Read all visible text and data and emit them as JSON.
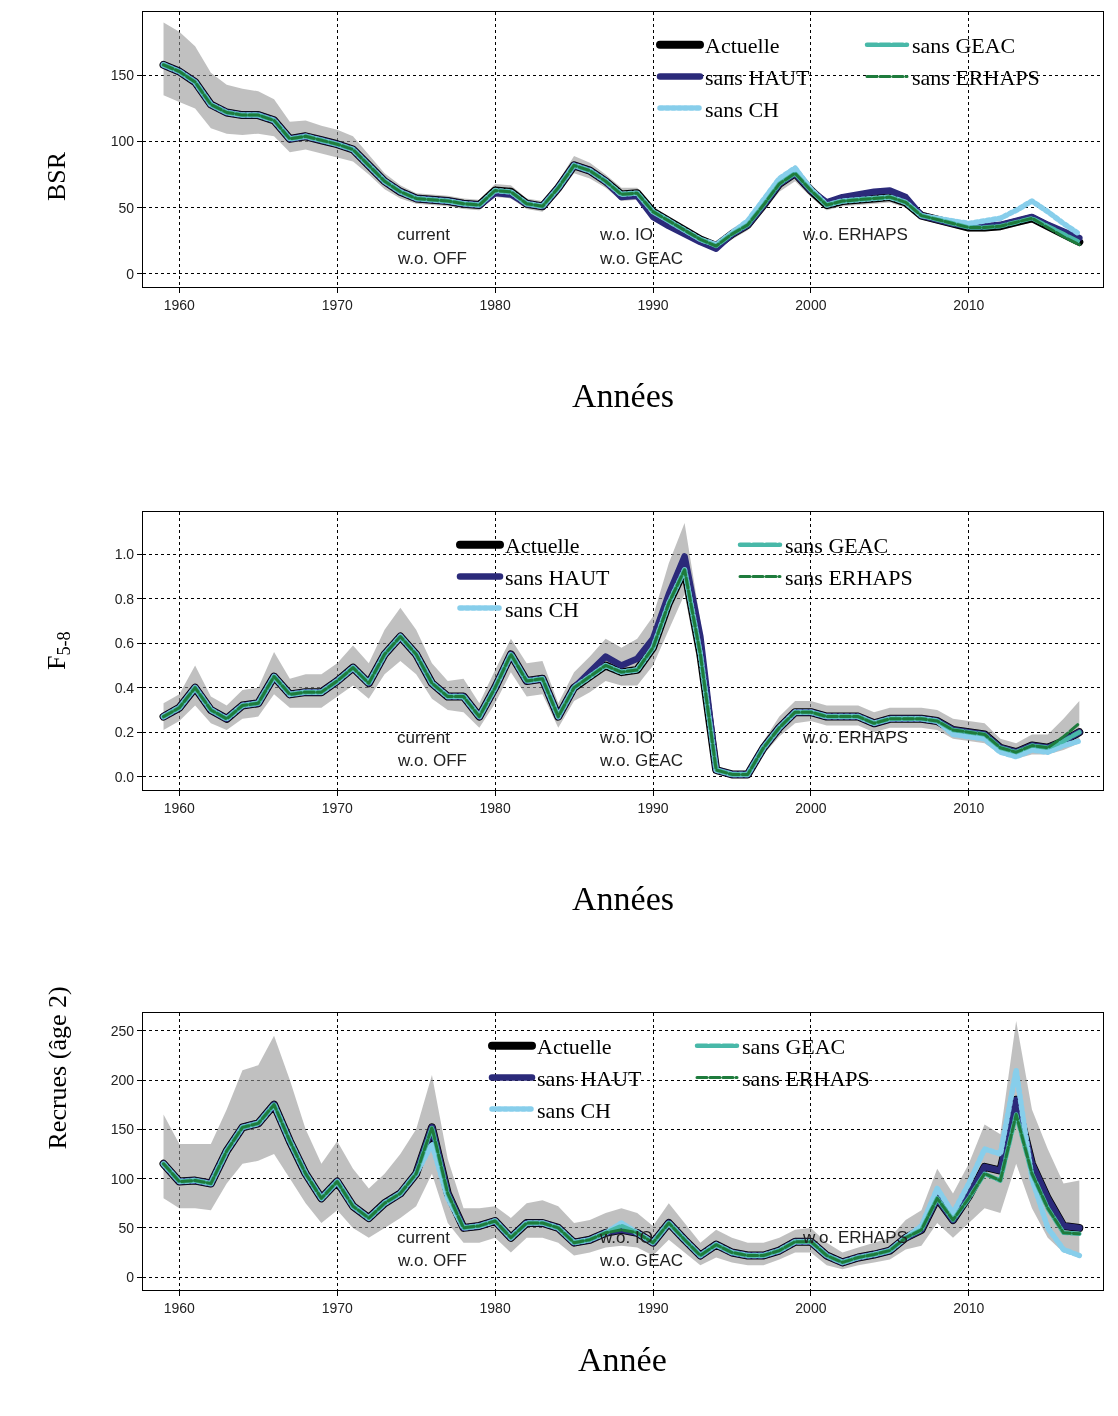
{
  "chart_data": [
    {
      "type": "line",
      "ylabel": "BSR",
      "xlabel": "Années",
      "grid": true,
      "legend": "top right",
      "xlim": [
        1957.7,
        2018.5
      ],
      "xticks": [
        1960,
        1970,
        1980,
        1990,
        2000,
        2010
      ],
      "ylim": [
        -10,
        198
      ],
      "yticks": [
        0,
        50,
        100,
        150
      ],
      "x": [
        1959,
        1960,
        1961,
        1962,
        1963,
        1964,
        1965,
        1966,
        1967,
        1968,
        1969,
        1970,
        1971,
        1972,
        1973,
        1974,
        1975,
        1976,
        1977,
        1978,
        1979,
        1980,
        1981,
        1982,
        1983,
        1984,
        1985,
        1986,
        1987,
        1988,
        1989,
        1990,
        1991,
        1992,
        1993,
        1994,
        1995,
        1996,
        1997,
        1998,
        1999,
        2000,
        2001,
        2002,
        2003,
        2004,
        2005,
        2006,
        2007,
        2008,
        2009,
        2010,
        2011,
        2012,
        2013,
        2014,
        2015,
        2016,
        2017
      ],
      "annotations": [
        "current",
        "w.o. OFF",
        "w.o. IO",
        "w.o. GEAC",
        "w.o. ERHAPS"
      ],
      "series": [
        {
          "name": "Actuelle",
          "color": "#000000",
          "line_style": "solid",
          "values": [
            158,
            153,
            145,
            128,
            122,
            120,
            120,
            116,
            102,
            104,
            101,
            98,
            94,
            82,
            70,
            62,
            57,
            56,
            55,
            53,
            52,
            63,
            62,
            53,
            51,
            65,
            82,
            78,
            70,
            60,
            61,
            47,
            40,
            33,
            26,
            21,
            30,
            37,
            52,
            68,
            76,
            63,
            52,
            55,
            56,
            57,
            58,
            54,
            44,
            41,
            38,
            35,
            35,
            36,
            39,
            42,
            36,
            30,
            24
          ],
          "upper": [
            190,
            183,
            172,
            152,
            143,
            140,
            138,
            132,
            115,
            116,
            112,
            109,
            104,
            90,
            76,
            67,
            61,
            60,
            59,
            57,
            56,
            68,
            67,
            57,
            55,
            70,
            89,
            84,
            75,
            65,
            65,
            51,
            43,
            36,
            29,
            24,
            34,
            41,
            57,
            74,
            82,
            68,
            56,
            59,
            60,
            61,
            62,
            58,
            47,
            44,
            41,
            38,
            38,
            39,
            42,
            45,
            39,
            33,
            27
          ],
          "lower": [
            135,
            130,
            125,
            110,
            106,
            105,
            106,
            104,
            92,
            94,
            91,
            88,
            85,
            75,
            64,
            57,
            53,
            52,
            51,
            49,
            48,
            58,
            57,
            49,
            47,
            60,
            76,
            72,
            65,
            55,
            56,
            43,
            36,
            29,
            23,
            18,
            26,
            33,
            47,
            62,
            70,
            58,
            48,
            51,
            52,
            53,
            54,
            50,
            41,
            38,
            35,
            32,
            32,
            33,
            36,
            39,
            33,
            27,
            21
          ]
        },
        {
          "name": "sans HAUT",
          "color": "#2b2a7a",
          "line_style": "solid",
          "values": [
            158,
            153,
            145,
            128,
            122,
            120,
            120,
            116,
            102,
            104,
            101,
            98,
            94,
            82,
            70,
            62,
            57,
            56,
            55,
            53,
            52,
            61,
            60,
            53,
            51,
            65,
            82,
            78,
            70,
            58,
            59,
            43,
            36,
            30,
            24,
            19,
            30,
            37,
            52,
            68,
            76,
            63,
            54,
            58,
            60,
            62,
            63,
            58,
            44,
            41,
            38,
            36,
            36,
            37,
            40,
            43,
            37,
            32,
            27
          ]
        },
        {
          "name": "sans CH",
          "color": "#87ceeb",
          "line_style": "dotted",
          "values": [
            158,
            153,
            145,
            128,
            122,
            120,
            120,
            116,
            102,
            104,
            101,
            98,
            94,
            82,
            70,
            62,
            57,
            56,
            55,
            53,
            52,
            63,
            62,
            53,
            51,
            65,
            82,
            78,
            70,
            60,
            61,
            47,
            40,
            33,
            26,
            22,
            31,
            40,
            56,
            72,
            80,
            64,
            52,
            55,
            56,
            57,
            58,
            54,
            44,
            42,
            40,
            38,
            40,
            42,
            48,
            55,
            47,
            38,
            30
          ]
        },
        {
          "name": "sans GEAC",
          "color": "#48b8a8",
          "line_style": "dashed",
          "values": [
            158,
            153,
            145,
            128,
            122,
            120,
            120,
            116,
            102,
            104,
            101,
            98,
            94,
            82,
            70,
            62,
            57,
            56,
            55,
            53,
            52,
            63,
            62,
            53,
            51,
            65,
            82,
            78,
            70,
            60,
            61,
            47,
            40,
            33,
            26,
            21,
            30,
            37,
            52,
            68,
            76,
            63,
            52,
            55,
            56,
            57,
            58,
            54,
            44,
            41,
            38,
            35,
            35,
            36,
            39,
            42,
            36,
            30,
            24
          ]
        },
        {
          "name": "sans ERHAPS",
          "color": "#1e7b3c",
          "line_style": "dashed",
          "values": [
            158,
            153,
            145,
            128,
            122,
            120,
            120,
            116,
            102,
            104,
            101,
            98,
            94,
            82,
            70,
            62,
            57,
            56,
            55,
            53,
            52,
            63,
            62,
            53,
            51,
            65,
            82,
            78,
            70,
            60,
            61,
            47,
            40,
            33,
            26,
            21,
            30,
            37,
            52,
            68,
            76,
            63,
            52,
            55,
            56,
            57,
            58,
            54,
            44,
            41,
            38,
            35,
            35,
            36,
            39,
            42,
            35,
            28,
            22
          ]
        }
      ]
    },
    {
      "type": "line",
      "ylabel": "F$_{5-8}$",
      "xlabel": "Années",
      "grid": true,
      "legend": "top",
      "xlim": [
        1957.7,
        2018.5
      ],
      "xticks": [
        1960,
        1970,
        1980,
        1990,
        2000,
        2010
      ],
      "ylim": [
        -0.06,
        1.19
      ],
      "yticks": [
        {
          "value": 0,
          "label": "0.0"
        },
        {
          "value": 0.2,
          "label": "0.2"
        },
        {
          "value": 0.4,
          "label": "0.4"
        },
        {
          "value": 0.6,
          "label": "0.6"
        },
        {
          "value": 0.8,
          "label": "0.8"
        },
        {
          "value": 1,
          "label": "1.0"
        }
      ],
      "x": [
        1959,
        1960,
        1961,
        1962,
        1963,
        1964,
        1965,
        1966,
        1967,
        1968,
        1969,
        1970,
        1971,
        1972,
        1973,
        1974,
        1975,
        1976,
        1977,
        1978,
        1979,
        1980,
        1981,
        1982,
        1983,
        1984,
        1985,
        1986,
        1987,
        1988,
        1989,
        1990,
        1991,
        1992,
        1993,
        1994,
        1995,
        1996,
        1997,
        1998,
        1999,
        2000,
        2001,
        2002,
        2003,
        2004,
        2005,
        2006,
        2007,
        2008,
        2009,
        2010,
        2011,
        2012,
        2013,
        2014,
        2015,
        2016,
        2017
      ],
      "annotations": [
        "current",
        "w.o. OFF",
        "w.o. IO",
        "w.o. GEAC",
        "w.o. ERHAPS"
      ],
      "series": [
        {
          "name": "Actuelle",
          "color": "#000000",
          "line_style": "solid",
          "values": [
            0.27,
            0.31,
            0.4,
            0.3,
            0.26,
            0.32,
            0.33,
            0.45,
            0.37,
            0.38,
            0.38,
            0.43,
            0.49,
            0.42,
            0.55,
            0.63,
            0.55,
            0.42,
            0.36,
            0.36,
            0.27,
            0.4,
            0.55,
            0.43,
            0.44,
            0.27,
            0.4,
            0.45,
            0.5,
            0.47,
            0.48,
            0.58,
            0.78,
            0.93,
            0.55,
            0.03,
            0.01,
            0.01,
            0.13,
            0.22,
            0.29,
            0.29,
            0.27,
            0.27,
            0.27,
            0.24,
            0.26,
            0.26,
            0.26,
            0.25,
            0.21,
            0.2,
            0.19,
            0.13,
            0.11,
            0.14,
            0.13,
            0.16,
            0.2
          ],
          "upper": [
            0.33,
            0.37,
            0.5,
            0.36,
            0.32,
            0.39,
            0.4,
            0.56,
            0.44,
            0.46,
            0.46,
            0.51,
            0.59,
            0.51,
            0.66,
            0.76,
            0.66,
            0.51,
            0.43,
            0.44,
            0.33,
            0.48,
            0.62,
            0.51,
            0.52,
            0.33,
            0.47,
            0.54,
            0.62,
            0.58,
            0.62,
            0.72,
            0.96,
            1.14,
            0.7,
            0.05,
            0.02,
            0.02,
            0.16,
            0.27,
            0.34,
            0.34,
            0.32,
            0.32,
            0.32,
            0.29,
            0.31,
            0.31,
            0.31,
            0.3,
            0.26,
            0.25,
            0.24,
            0.17,
            0.15,
            0.19,
            0.19,
            0.26,
            0.34
          ],
          "lower": [
            0.21,
            0.25,
            0.32,
            0.24,
            0.21,
            0.26,
            0.27,
            0.37,
            0.31,
            0.31,
            0.31,
            0.36,
            0.41,
            0.35,
            0.46,
            0.52,
            0.46,
            0.35,
            0.3,
            0.29,
            0.22,
            0.33,
            0.47,
            0.36,
            0.37,
            0.22,
            0.34,
            0.38,
            0.43,
            0.41,
            0.41,
            0.5,
            0.66,
            0.82,
            0.45,
            0.01,
            0.0,
            0.0,
            0.1,
            0.18,
            0.24,
            0.25,
            0.23,
            0.23,
            0.23,
            0.2,
            0.22,
            0.22,
            0.22,
            0.21,
            0.17,
            0.16,
            0.15,
            0.1,
            0.08,
            0.1,
            0.1,
            0.12,
            0.15
          ]
        },
        {
          "name": "sans HAUT",
          "color": "#2b2a7a",
          "line_style": "solid",
          "values": [
            0.27,
            0.31,
            0.4,
            0.3,
            0.26,
            0.32,
            0.33,
            0.45,
            0.37,
            0.38,
            0.38,
            0.43,
            0.49,
            0.42,
            0.55,
            0.63,
            0.55,
            0.42,
            0.36,
            0.36,
            0.27,
            0.4,
            0.55,
            0.43,
            0.44,
            0.27,
            0.4,
            0.47,
            0.54,
            0.5,
            0.53,
            0.62,
            0.82,
            0.99,
            0.63,
            0.03,
            0.01,
            0.01,
            0.13,
            0.22,
            0.29,
            0.29,
            0.27,
            0.27,
            0.27,
            0.24,
            0.26,
            0.26,
            0.26,
            0.25,
            0.21,
            0.2,
            0.19,
            0.13,
            0.11,
            0.14,
            0.13,
            0.16,
            0.2
          ]
        },
        {
          "name": "sans CH",
          "color": "#87ceeb",
          "line_style": "dotted",
          "values": [
            0.27,
            0.31,
            0.4,
            0.3,
            0.26,
            0.32,
            0.33,
            0.45,
            0.37,
            0.38,
            0.38,
            0.43,
            0.49,
            0.42,
            0.55,
            0.63,
            0.55,
            0.42,
            0.36,
            0.36,
            0.27,
            0.4,
            0.55,
            0.43,
            0.44,
            0.27,
            0.4,
            0.45,
            0.5,
            0.47,
            0.48,
            0.58,
            0.78,
            0.93,
            0.55,
            0.03,
            0.01,
            0.01,
            0.13,
            0.22,
            0.29,
            0.29,
            0.27,
            0.27,
            0.27,
            0.24,
            0.26,
            0.26,
            0.26,
            0.25,
            0.19,
            0.18,
            0.17,
            0.11,
            0.09,
            0.12,
            0.11,
            0.14,
            0.16
          ]
        },
        {
          "name": "sans GEAC",
          "color": "#48b8a8",
          "line_style": "dashed",
          "values": [
            0.27,
            0.31,
            0.4,
            0.3,
            0.26,
            0.32,
            0.33,
            0.45,
            0.37,
            0.38,
            0.38,
            0.43,
            0.49,
            0.42,
            0.55,
            0.63,
            0.55,
            0.42,
            0.36,
            0.36,
            0.27,
            0.4,
            0.55,
            0.43,
            0.44,
            0.27,
            0.4,
            0.45,
            0.5,
            0.47,
            0.48,
            0.58,
            0.78,
            0.93,
            0.55,
            0.03,
            0.01,
            0.01,
            0.13,
            0.22,
            0.29,
            0.29,
            0.27,
            0.27,
            0.27,
            0.24,
            0.26,
            0.26,
            0.26,
            0.25,
            0.21,
            0.2,
            0.19,
            0.13,
            0.11,
            0.14,
            0.13,
            0.16,
            0.2
          ]
        },
        {
          "name": "sans ERHAPS",
          "color": "#1e7b3c",
          "line_style": "dashed",
          "values": [
            0.27,
            0.31,
            0.4,
            0.3,
            0.26,
            0.32,
            0.33,
            0.45,
            0.37,
            0.38,
            0.38,
            0.43,
            0.49,
            0.42,
            0.55,
            0.63,
            0.55,
            0.42,
            0.36,
            0.36,
            0.27,
            0.4,
            0.55,
            0.43,
            0.44,
            0.27,
            0.4,
            0.45,
            0.5,
            0.47,
            0.48,
            0.58,
            0.78,
            0.93,
            0.55,
            0.03,
            0.01,
            0.01,
            0.13,
            0.22,
            0.29,
            0.29,
            0.27,
            0.27,
            0.27,
            0.24,
            0.26,
            0.26,
            0.26,
            0.25,
            0.21,
            0.2,
            0.19,
            0.13,
            0.11,
            0.14,
            0.13,
            0.18,
            0.24
          ]
        }
      ]
    },
    {
      "type": "line",
      "ylabel": "Recrues (âge 2)",
      "xlabel": "Année",
      "grid": true,
      "legend": "top",
      "xlim": [
        1957.7,
        2018.5
      ],
      "xticks": [
        1960,
        1970,
        1980,
        1990,
        2000,
        2010
      ],
      "ylim": [
        -13,
        268
      ],
      "yticks": [
        0,
        50,
        100,
        150,
        200,
        250
      ],
      "x": [
        1959,
        1960,
        1961,
        1962,
        1963,
        1964,
        1965,
        1966,
        1967,
        1968,
        1969,
        1970,
        1971,
        1972,
        1973,
        1974,
        1975,
        1976,
        1977,
        1978,
        1979,
        1980,
        1981,
        1982,
        1983,
        1984,
        1985,
        1986,
        1987,
        1988,
        1989,
        1990,
        1991,
        1992,
        1993,
        1994,
        1995,
        1996,
        1997,
        1998,
        1999,
        2000,
        2001,
        2002,
        2003,
        2004,
        2005,
        2006,
        2007,
        2008,
        2009,
        2010,
        2011,
        2012,
        2013,
        2014,
        2015,
        2016,
        2017
      ],
      "annotations": [
        "current",
        "w.o. OFF",
        "w.o. IO",
        "w.o. GEAC",
        "w.o. ERHAPS"
      ],
      "series": [
        {
          "name": "Actuelle",
          "color": "#000000",
          "line_style": "solid",
          "values": [
            115,
            97,
            98,
            95,
            128,
            152,
            156,
            175,
            138,
            105,
            80,
            97,
            72,
            60,
            75,
            85,
            105,
            152,
            85,
            50,
            52,
            57,
            40,
            55,
            55,
            50,
            35,
            38,
            45,
            48,
            45,
            35,
            55,
            38,
            22,
            33,
            25,
            22,
            22,
            27,
            36,
            36,
            22,
            15,
            20,
            23,
            27,
            40,
            48,
            80,
            58,
            82,
            112,
            108,
            180,
            115,
            80,
            52,
            50
          ],
          "upper": [
            165,
            135,
            135,
            135,
            170,
            210,
            215,
            245,
            200,
            150,
            115,
            138,
            110,
            90,
            105,
            125,
            150,
            205,
            120,
            70,
            70,
            72,
            60,
            75,
            78,
            72,
            55,
            58,
            65,
            70,
            65,
            52,
            75,
            55,
            35,
            48,
            40,
            35,
            35,
            40,
            48,
            50,
            35,
            25,
            30,
            35,
            40,
            58,
            68,
            110,
            85,
            115,
            155,
            145,
            260,
            170,
            130,
            95,
            98
          ],
          "lower": [
            80,
            70,
            70,
            68,
            95,
            115,
            118,
            125,
            100,
            75,
            55,
            68,
            50,
            40,
            50,
            60,
            72,
            105,
            55,
            35,
            35,
            40,
            25,
            40,
            40,
            35,
            22,
            25,
            30,
            32,
            30,
            22,
            38,
            25,
            12,
            20,
            15,
            12,
            12,
            18,
            25,
            25,
            12,
            8,
            12,
            15,
            18,
            28,
            32,
            55,
            40,
            55,
            70,
            65,
            115,
            70,
            40,
            25,
            20
          ]
        },
        {
          "name": "sans HAUT",
          "color": "#2b2a7a",
          "line_style": "solid",
          "values": [
            115,
            97,
            98,
            95,
            128,
            152,
            156,
            175,
            138,
            105,
            80,
            97,
            72,
            60,
            75,
            85,
            105,
            152,
            85,
            50,
            52,
            57,
            40,
            55,
            55,
            50,
            35,
            38,
            45,
            48,
            45,
            35,
            55,
            38,
            22,
            33,
            25,
            22,
            22,
            27,
            36,
            36,
            22,
            15,
            20,
            23,
            27,
            40,
            48,
            80,
            58,
            82,
            112,
            108,
            180,
            115,
            80,
            52,
            50
          ]
        },
        {
          "name": "sans CH",
          "color": "#87ceeb",
          "line_style": "dotted",
          "values": [
            115,
            97,
            98,
            95,
            128,
            152,
            156,
            175,
            138,
            105,
            80,
            97,
            72,
            60,
            75,
            85,
            105,
            135,
            80,
            50,
            52,
            57,
            40,
            55,
            55,
            50,
            35,
            38,
            45,
            55,
            45,
            35,
            55,
            38,
            22,
            33,
            25,
            22,
            22,
            27,
            36,
            36,
            22,
            15,
            20,
            23,
            27,
            40,
            52,
            90,
            65,
            95,
            130,
            125,
            210,
            100,
            50,
            28,
            22
          ]
        },
        {
          "name": "sans GEAC",
          "color": "#48b8a8",
          "line_style": "dashed",
          "values": [
            115,
            97,
            98,
            95,
            128,
            152,
            156,
            175,
            138,
            105,
            80,
            97,
            72,
            60,
            75,
            85,
            105,
            152,
            85,
            50,
            52,
            57,
            40,
            55,
            55,
            50,
            35,
            38,
            45,
            52,
            45,
            35,
            55,
            38,
            22,
            33,
            25,
            22,
            22,
            27,
            36,
            36,
            22,
            15,
            20,
            23,
            27,
            40,
            48,
            80,
            58,
            80,
            105,
            98,
            165,
            105,
            70,
            45,
            44
          ]
        },
        {
          "name": "sans ERHAPS",
          "color": "#1e7b3c",
          "line_style": "dashed",
          "values": [
            115,
            97,
            98,
            95,
            128,
            152,
            156,
            175,
            138,
            105,
            80,
            97,
            72,
            60,
            75,
            85,
            105,
            152,
            85,
            50,
            52,
            57,
            40,
            55,
            55,
            50,
            35,
            38,
            45,
            48,
            45,
            35,
            55,
            38,
            22,
            33,
            25,
            22,
            22,
            27,
            36,
            36,
            22,
            15,
            20,
            23,
            27,
            40,
            48,
            80,
            58,
            80,
            105,
            98,
            165,
            105,
            70,
            45,
            44
          ]
        }
      ]
    }
  ]
}
